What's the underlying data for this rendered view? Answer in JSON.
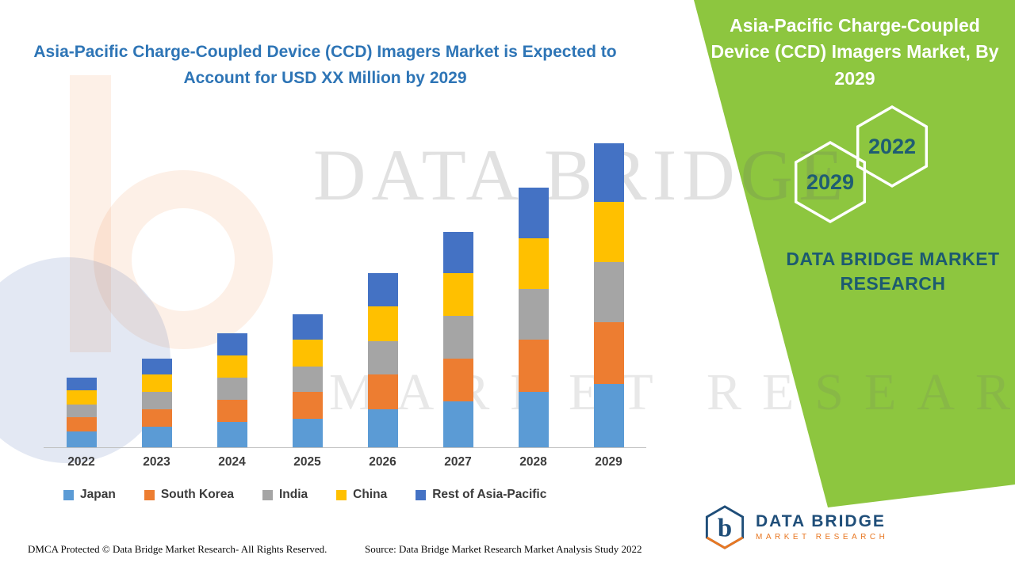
{
  "left_panel": {
    "title": "Asia-Pacific Charge-Coupled Device (CCD) Imagers Market is Expected to Account for USD XX Million by 2029",
    "footer": {
      "dmca": "DMCA Protected © Data Bridge Market Research- All Rights Reserved.",
      "source": "Source: Data Bridge Market Research Market Analysis Study 2022"
    }
  },
  "right_panel": {
    "title": "Asia-Pacific Charge-Coupled Device (CCD) Imagers Market, By 2029",
    "hexagons": [
      {
        "label": "2029"
      },
      {
        "label": "2022"
      }
    ],
    "brand_text": "DATA BRIDGE MARKET RESEARCH",
    "colors": {
      "panel_green": "#8DC63F",
      "hexagon_outline": "#FFFFFF",
      "hexagon_text": "#1F5D73",
      "brand_text_color": "#1C5A70"
    }
  },
  "watermark": {
    "line1": "DATA BRIDGE",
    "line2": "MARKET RESEARCH"
  },
  "logo": {
    "name": "DATA BRIDGE",
    "subtitle": "MARKET RESEARCH",
    "brand_blue": "#1F4E79",
    "brand_orange": "#E87722"
  },
  "chart_data": {
    "type": "bar",
    "stacked": true,
    "title": "Asia-Pacific Charge-Coupled Device (CCD) Imagers Market is Expected to Account for USD XX Million by 2029",
    "unit": "USD Million",
    "values_estimated_from_pixels": true,
    "categories": [
      "2022",
      "2023",
      "2024",
      "2025",
      "2026",
      "2027",
      "2028",
      "2029"
    ],
    "series": [
      {
        "name": "Japan",
        "color": "#5B9BD5",
        "values": [
          5,
          6.5,
          8,
          9,
          12,
          14.5,
          17.5,
          20
        ]
      },
      {
        "name": "South Korea",
        "color": "#ED7D31",
        "values": [
          4.5,
          5.5,
          7,
          8.5,
          11,
          13.5,
          16.5,
          19.5
        ]
      },
      {
        "name": "India",
        "color": "#A5A5A5",
        "values": [
          4,
          5.5,
          7,
          8,
          10.5,
          13.5,
          16,
          19
        ]
      },
      {
        "name": "China",
        "color": "#FFC000",
        "values": [
          4.5,
          5.5,
          7,
          8.5,
          11,
          13.5,
          16,
          19
        ]
      },
      {
        "name": "Rest of Asia-Pacific",
        "color": "#4472C4",
        "values": [
          4,
          5,
          7,
          8,
          10.5,
          13,
          16,
          18.5
        ]
      }
    ],
    "totals": [
      22,
      28,
      36,
      42,
      55,
      68,
      82,
      96
    ],
    "ylim": [
      0,
      100
    ],
    "grid": false,
    "legend_position": "bottom",
    "xlabel": "",
    "ylabel": ""
  }
}
